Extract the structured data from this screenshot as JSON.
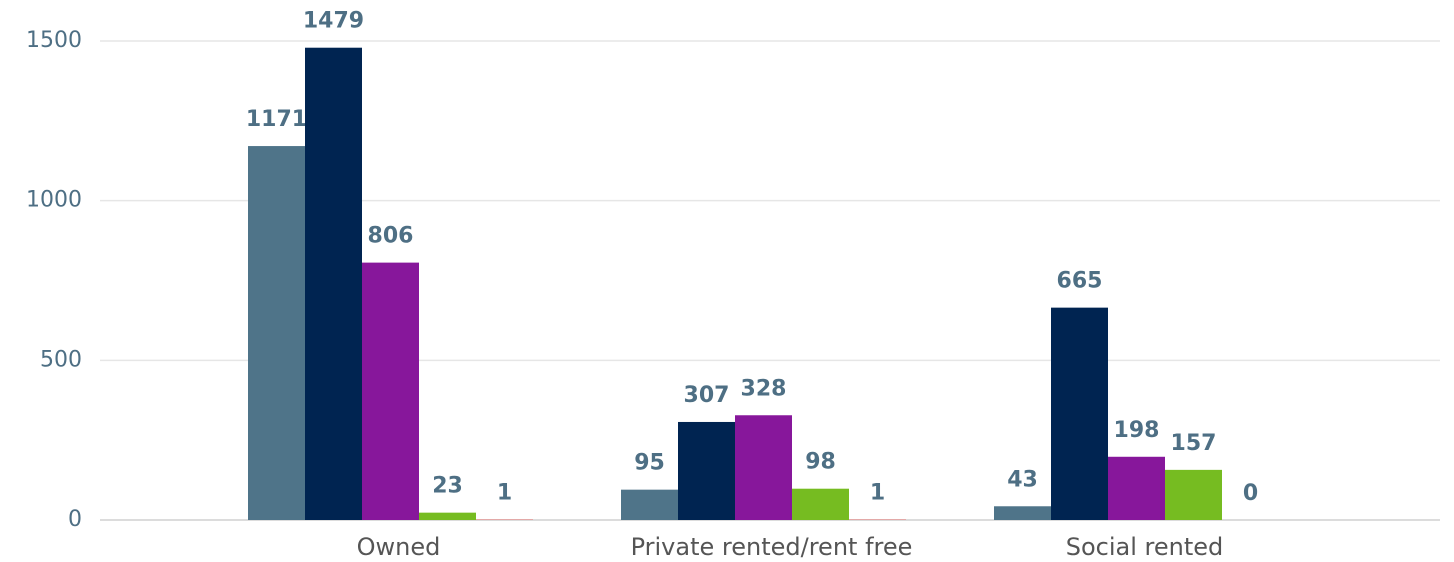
{
  "chart_data": {
    "type": "bar",
    "categories": [
      "Owned",
      "Private rented/rent free",
      "Social rented"
    ],
    "series": [
      {
        "color": "#4f7489",
        "values": [
          1171,
          95,
          43
        ]
      },
      {
        "color": "#002451",
        "values": [
          1479,
          307,
          665
        ]
      },
      {
        "color": "#87179b",
        "values": [
          806,
          328,
          198
        ]
      },
      {
        "color": "#76bc21",
        "values": [
          23,
          98,
          157
        ]
      },
      {
        "color": "#e8312f",
        "values": [
          1,
          1,
          0
        ]
      }
    ],
    "ylim": [
      0,
      1500
    ],
    "yticks": [
      0,
      500,
      1000,
      1500
    ],
    "grid": true
  }
}
